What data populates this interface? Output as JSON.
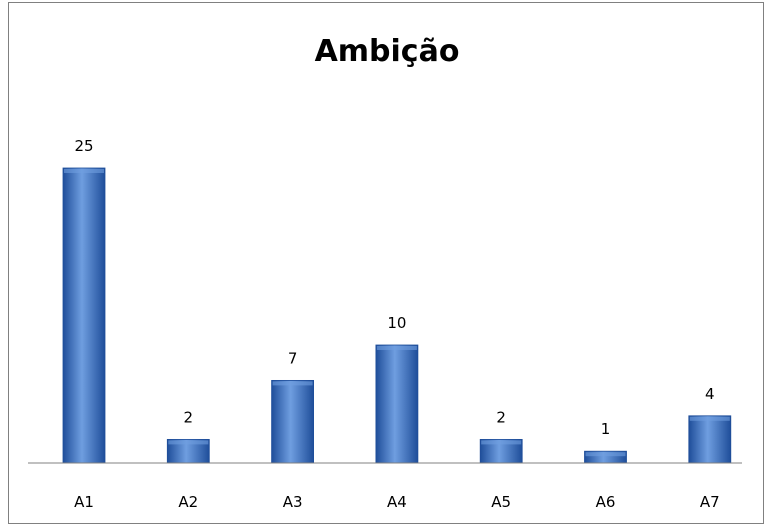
{
  "chart_data": {
    "type": "bar",
    "title": "Ambição",
    "xlabel": "",
    "ylabel": "",
    "categories": [
      "A1",
      "A2",
      "A3",
      "A4",
      "A5",
      "A6",
      "A7"
    ],
    "values": [
      25,
      2,
      7,
      10,
      2,
      1,
      4
    ],
    "ylim": [
      0,
      25
    ],
    "grid": false,
    "legend": "none",
    "colors": {
      "bar": "#3d72c4",
      "bar_light": "#6f9ee0",
      "bar_dark": "#1f4e9a",
      "axis": "#808080"
    }
  }
}
